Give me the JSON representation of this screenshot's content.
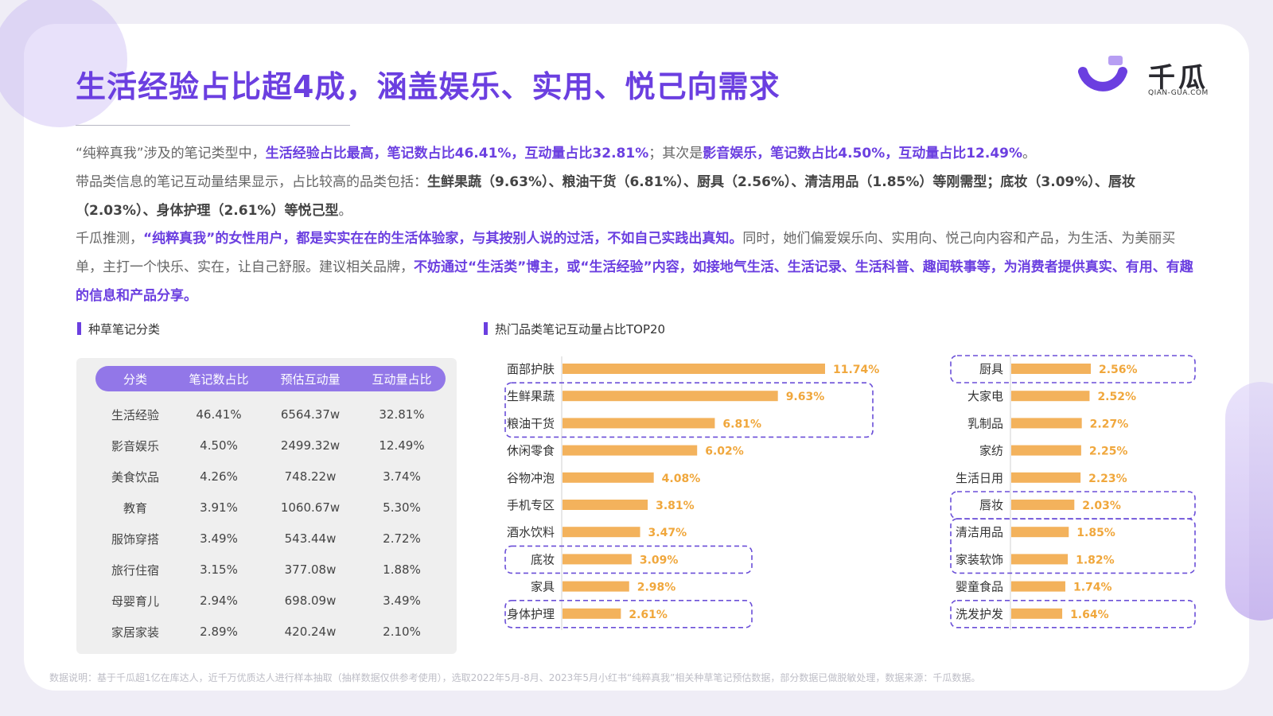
{
  "title": "生活经验占比超4成，涵盖娱乐、实用、悦己向需求",
  "logo": {
    "name": "千瓜",
    "url_text": "QIAN-GUA.COM"
  },
  "paragraphs": [
    {
      "segments": [
        {
          "text": "“纯粹真我”涉及的笔记类型中，",
          "hl": false
        },
        {
          "text": "生活经验占比最高，笔记数占比46.41%，互动量占比32.81%",
          "hl": true
        },
        {
          "text": "；其次是",
          "hl": false
        },
        {
          "text": "影音娱乐，笔记数占比4.50%，互动量占比12.49%",
          "hl": true
        },
        {
          "text": "。",
          "hl": false
        }
      ]
    },
    {
      "segments": [
        {
          "text": "带品类信息的笔记互动量结果显示，占比较高的品类包括：",
          "hl": false
        },
        {
          "text": "生鲜果蔬（9.63%）、粮油干货（6.81%）、厨具（2.56%）、清洁用品（1.85%）等刚需型；底妆（3.09%）、唇妆（2.03%）、身体护理（2.61%）等悦己型",
          "hl": "dark"
        },
        {
          "text": "。",
          "hl": false
        }
      ]
    },
    {
      "segments": [
        {
          "text": "千瓜推测，",
          "hl": false
        },
        {
          "text": "“纯粹真我”的女性用户，都是实实在在的生活体验家，与其按别人说的过活，不如自己实践出真知。",
          "hl": true
        },
        {
          "text": "同时，她们偏爱娱乐向、实用向、悦己向内容和产品，为生活、为美丽买单，主打一个快乐、实在，让自己舒服。建议相关品牌，",
          "hl": false
        },
        {
          "text": "不妨通过“生活类”博主，或“生活经验”内容，如接地气生活、生活记录、生活科普、趣闻轶事等，为消费者提供真实、有用、有趣的信息和产品分享。",
          "hl": true
        }
      ]
    }
  ],
  "table_section": {
    "title": "种草笔记分类",
    "headers": [
      "分类",
      "笔记数占比",
      "预估互动量",
      "互动量占比"
    ],
    "rows": [
      [
        "生活经验",
        "46.41%",
        "6564.37w",
        "32.81%"
      ],
      [
        "影音娱乐",
        "4.50%",
        "2499.32w",
        "12.49%"
      ],
      [
        "美食饮品",
        "4.26%",
        "748.22w",
        "3.74%"
      ],
      [
        "教育",
        "3.91%",
        "1060.67w",
        "5.30%"
      ],
      [
        "服饰穿搭",
        "3.49%",
        "543.44w",
        "2.72%"
      ],
      [
        "旅行住宿",
        "3.15%",
        "377.08w",
        "1.88%"
      ],
      [
        "母婴育儿",
        "2.94%",
        "698.09w",
        "3.49%"
      ],
      [
        "家居家装",
        "2.89%",
        "420.24w",
        "2.10%"
      ]
    ]
  },
  "chart_title": "热门品类笔记互动量占比TOP20",
  "chart_data": [
    {
      "type": "bar",
      "orientation": "horizontal",
      "categories": [
        "面部护肤",
        "生鲜果蔬",
        "粮油干货",
        "休闲零食",
        "谷物冲泡",
        "手机专区",
        "酒水饮料",
        "底妆",
        "家具",
        "身体护理"
      ],
      "values": [
        11.74,
        9.63,
        6.81,
        6.02,
        4.08,
        3.81,
        3.47,
        3.09,
        2.98,
        2.61
      ],
      "labels": [
        "11.74%",
        "9.63%",
        "6.81%",
        "6.02%",
        "4.08%",
        "3.81%",
        "3.47%",
        "3.09%",
        "2.98%",
        "2.61%"
      ],
      "highlighted_groups": [
        [
          1,
          2
        ],
        [
          7
        ],
        [
          9
        ]
      ],
      "unit": "%"
    },
    {
      "type": "bar",
      "orientation": "horizontal",
      "categories": [
        "厨具",
        "大家电",
        "乳制品",
        "家纺",
        "生活日用",
        "唇妆",
        "清洁用品",
        "家装软饰",
        "婴童食品",
        "洗发护发"
      ],
      "values": [
        2.56,
        2.52,
        2.27,
        2.25,
        2.23,
        2.03,
        1.85,
        1.82,
        1.74,
        1.64
      ],
      "labels": [
        "2.56%",
        "2.52%",
        "2.27%",
        "2.25%",
        "2.23%",
        "2.03%",
        "1.85%",
        "1.82%",
        "1.74%",
        "1.64%"
      ],
      "highlighted_groups": [
        [
          0
        ],
        [
          5
        ],
        [
          6,
          7
        ],
        [
          9
        ]
      ],
      "unit": "%"
    }
  ],
  "colors": {
    "accent": "#6b3fe0",
    "bar": "#f3b25c",
    "bar_label": "#f0a73c",
    "dash": "#6b4fd8"
  },
  "footer": "数据说明：基于千瓜超1亿在库达人，近千万优质达人进行样本抽取（抽样数据仅供参考使用），选取2022年5月-8月、2023年5月小红书“纯粹真我”相关种草笔记预估数据，部分数据已做脱敏处理，数据来源：千瓜数据。"
}
